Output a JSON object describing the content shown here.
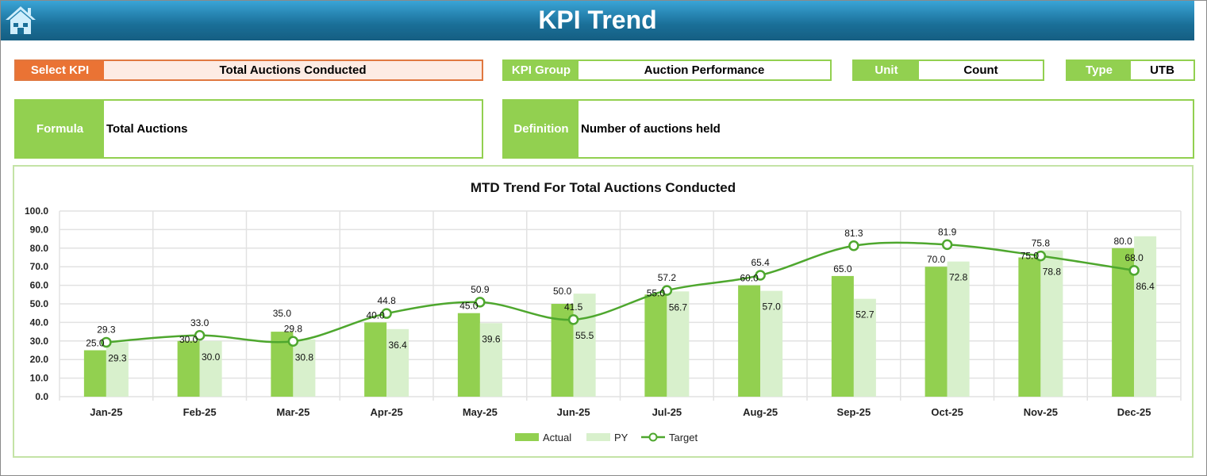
{
  "header": {
    "title": "KPI Trend",
    "home_icon": "home-icon"
  },
  "fields": {
    "select_kpi": {
      "label": "Select KPI",
      "value": "Total Auctions Conducted"
    },
    "kpi_group": {
      "label": "KPI Group",
      "value": "Auction Performance"
    },
    "unit": {
      "label": "Unit",
      "value": "Count"
    },
    "type": {
      "label": "Type",
      "value": "UTB"
    },
    "formula": {
      "label": "Formula",
      "value": "Total Auctions"
    },
    "definition": {
      "label": "Definition",
      "value": "Number of auctions held"
    }
  },
  "colors": {
    "accent": "#92d050",
    "orange": "#ea7334",
    "py": "#d8f0cc",
    "target": "#4ea72e",
    "header": "#1a6f98"
  },
  "chart_data": {
    "type": "bar",
    "title": "MTD Trend For Total Auctions Conducted",
    "categories": [
      "Jan-25",
      "Feb-25",
      "Mar-25",
      "Apr-25",
      "May-25",
      "Jun-25",
      "Jul-25",
      "Aug-25",
      "Sep-25",
      "Oct-25",
      "Nov-25",
      "Dec-25"
    ],
    "ylim": [
      0,
      100
    ],
    "yticks": [
      "0.0",
      "10.0",
      "20.0",
      "30.0",
      "40.0",
      "50.0",
      "60.0",
      "70.0",
      "80.0",
      "90.0",
      "100.0"
    ],
    "grid": true,
    "legend_position": "bottom",
    "series": [
      {
        "name": "Actual",
        "type": "bar",
        "values": [
          25.0,
          30.0,
          35.0,
          40.0,
          45.0,
          50.0,
          55.0,
          60.0,
          65.0,
          70.0,
          75.0,
          80.0
        ]
      },
      {
        "name": "PY",
        "type": "bar",
        "values": [
          29.3,
          30.0,
          30.8,
          36.4,
          39.6,
          55.5,
          56.7,
          57.0,
          52.7,
          72.8,
          78.8,
          86.4
        ]
      },
      {
        "name": "Target",
        "type": "line",
        "values": [
          29.3,
          33.0,
          29.8,
          44.8,
          50.9,
          41.5,
          57.2,
          65.4,
          81.3,
          81.9,
          75.8,
          68.0
        ]
      }
    ]
  }
}
